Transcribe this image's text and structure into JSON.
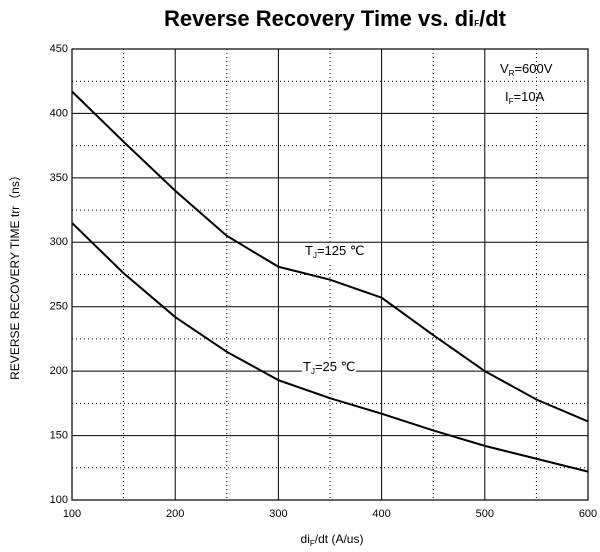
{
  "chart_data": {
    "type": "line",
    "title": {
      "main": "Reverse Recovery Time vs. di",
      "sub": "F",
      "rest": "/dt"
    },
    "xlabel": {
      "main": "di",
      "sub": "F",
      "rest": "/dt   (A/us)"
    },
    "ylabel": "REVERSE RECOVERY TIME  trr（ns）",
    "xlim": [
      100,
      600
    ],
    "ylim": [
      100,
      450
    ],
    "xticks": [
      100,
      200,
      300,
      400,
      500,
      600
    ],
    "yticks": [
      100,
      150,
      200,
      250,
      300,
      350,
      400,
      450
    ],
    "xminor": [
      150,
      250,
      350,
      450,
      550
    ],
    "yminor": [
      125,
      175,
      225,
      275,
      325,
      375,
      425
    ],
    "grid": true,
    "x": [
      100,
      150,
      200,
      250,
      300,
      350,
      400,
      450,
      500,
      550,
      600
    ],
    "series": [
      {
        "color": "#000000",
        "label": {
          "main": "T",
          "sub": "J",
          "rest": "=125 ℃"
        },
        "values": [
          417,
          378,
          340,
          305,
          281,
          271,
          257,
          228,
          200,
          178,
          161
        ]
      },
      {
        "color": "#000000",
        "label": {
          "main": "T",
          "sub": "J",
          "rest": "=25 ℃"
        },
        "values": [
          315,
          276,
          242,
          215,
          193,
          179,
          167,
          154,
          142,
          132,
          122
        ]
      }
    ],
    "annotations": [
      {
        "main": "V",
        "sub": "R",
        "rest": "=600V"
      },
      {
        "main": "I",
        "sub": "F",
        "rest": "=10A"
      }
    ]
  }
}
